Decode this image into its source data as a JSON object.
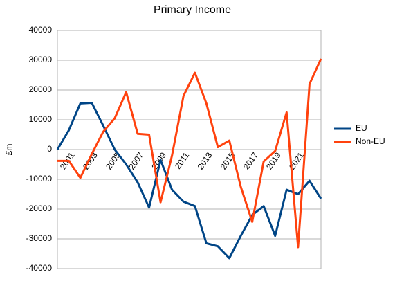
{
  "chart_data": {
    "type": "line",
    "title": "Primary Income",
    "y_label": "£m",
    "categories": [
      null,
      "2001",
      null,
      "2003",
      null,
      "2005",
      null,
      "2007",
      null,
      "2009",
      null,
      "2011",
      null,
      "2013",
      null,
      "2015",
      null,
      "2017",
      null,
      "2019",
      null,
      "2021",
      null,
      null
    ],
    "series": [
      {
        "name": "EU",
        "color": "#004586",
        "values": [
          0,
          6500,
          15500,
          15700,
          8000,
          0,
          -5000,
          -11000,
          -19500,
          -3500,
          -13500,
          -17500,
          -19000,
          -31500,
          -32500,
          -36500,
          -29000,
          -22000,
          -19000,
          -29000,
          -13500,
          -15000,
          -10500,
          -16500
        ]
      },
      {
        "name": "Non-EU",
        "color": "#ff420e",
        "values": [
          -3800,
          -3800,
          -9500,
          -1500,
          6000,
          10500,
          19300,
          5300,
          5000,
          -17700,
          -2000,
          18000,
          25800,
          15500,
          800,
          3000,
          -12500,
          -24300,
          -4000,
          -500,
          12500,
          -32800,
          22000,
          30500
        ]
      }
    ],
    "ylim": [
      -40000,
      40000
    ],
    "yticks": [
      -40000,
      -30000,
      -20000,
      -10000,
      0,
      10000,
      20000,
      30000,
      40000
    ],
    "grid": true,
    "legend": "right"
  }
}
